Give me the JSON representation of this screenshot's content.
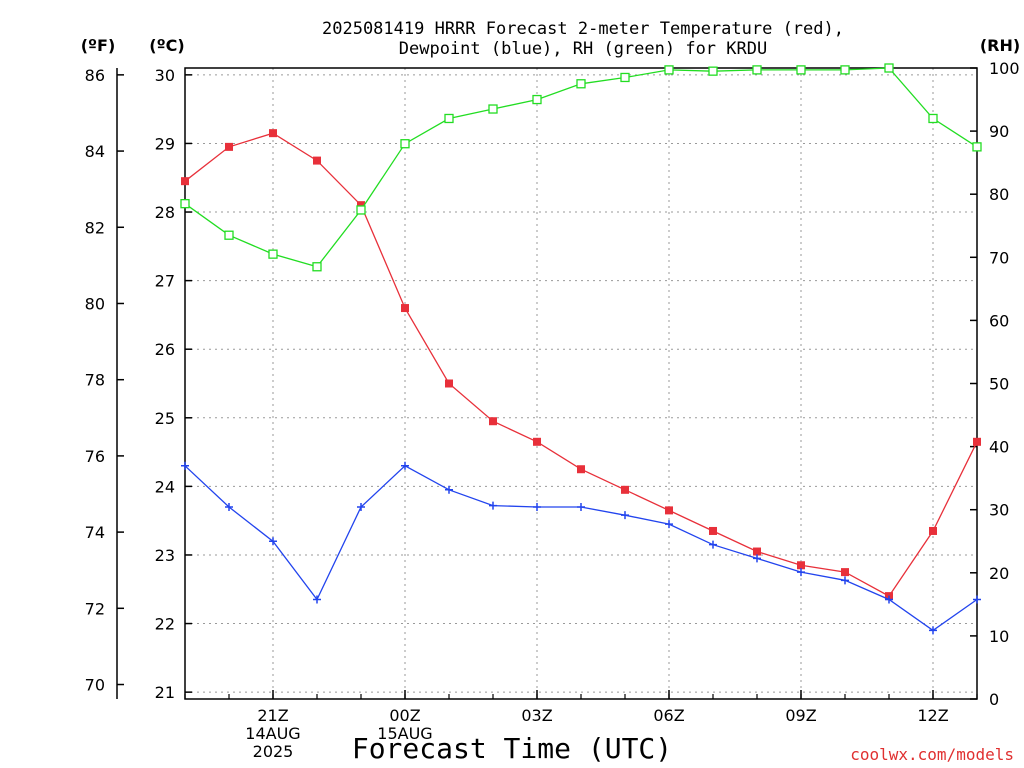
{
  "title_lines": [
    "2025081419 HRRR Forecast 2-meter Temperature (red),",
    "Dewpoint (blue), RH (green) for KRDU"
  ],
  "unit_labels": {
    "fahrenheit": "(ºF)",
    "celsius": "(ºC)",
    "rh": "(RH)"
  },
  "xlabel": "Forecast Time (UTC)",
  "watermark": "coolwx.com/models",
  "chart_data": {
    "type": "line",
    "x_hours": [
      19,
      20,
      21,
      22,
      23,
      24,
      25,
      26,
      27,
      28,
      29,
      30,
      31,
      32,
      33,
      34,
      35,
      36,
      37
    ],
    "xlim": [
      19,
      37
    ],
    "x_ticks": [
      {
        "hour": 21,
        "lines": [
          "21Z",
          "14AUG",
          "2025"
        ]
      },
      {
        "hour": 24,
        "lines": [
          "00Z",
          "15AUG"
        ]
      },
      {
        "hour": 27,
        "lines": [
          "03Z"
        ]
      },
      {
        "hour": 30,
        "lines": [
          "06Z"
        ]
      },
      {
        "hour": 33,
        "lines": [
          "09Z"
        ]
      },
      {
        "hour": 36,
        "lines": [
          "12Z"
        ]
      }
    ],
    "y_celsius": {
      "lim": [
        20.9,
        30.1
      ],
      "ticks": [
        21,
        22,
        23,
        24,
        25,
        26,
        27,
        28,
        29,
        30
      ]
    },
    "y_fahrenheit": {
      "lim": [
        69.62,
        86.18
      ],
      "ticks": [
        70,
        72,
        74,
        76,
        78,
        80,
        82,
        84,
        86
      ]
    },
    "y_rh": {
      "lim": [
        0,
        100
      ],
      "ticks": [
        0,
        10,
        20,
        30,
        40,
        50,
        60,
        70,
        80,
        90,
        100
      ]
    },
    "grid": true,
    "series": [
      {
        "name": "Temperature",
        "axis": "celsius",
        "color": "#e8303a",
        "marker": "filled-square",
        "values": [
          28.45,
          28.95,
          29.15,
          28.75,
          28.1,
          26.6,
          25.5,
          24.95,
          24.65,
          24.25,
          23.95,
          23.65,
          23.35,
          23.05,
          22.85,
          22.75,
          22.4,
          23.35,
          24.65
        ]
      },
      {
        "name": "Dewpoint",
        "axis": "celsius",
        "color": "#2244ee",
        "marker": "plus",
        "values": [
          24.3,
          23.7,
          23.2,
          22.35,
          23.7,
          24.3,
          23.95,
          23.72,
          23.7,
          23.7,
          23.58,
          23.45,
          23.15,
          22.95,
          22.75,
          22.63,
          22.35,
          21.9,
          22.35
        ]
      },
      {
        "name": "RH",
        "axis": "rh",
        "color": "#22dd22",
        "marker": "open-square",
        "values": [
          78.5,
          73.5,
          70.5,
          68.5,
          77.5,
          88.0,
          92.0,
          93.5,
          95.0,
          97.5,
          98.5,
          99.7,
          99.5,
          99.7,
          99.7,
          99.7,
          100.0,
          92.0,
          87.5
        ]
      }
    ]
  }
}
